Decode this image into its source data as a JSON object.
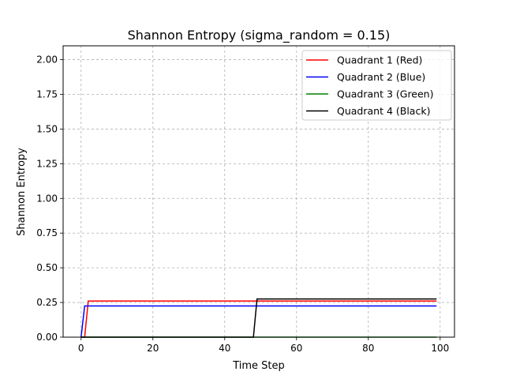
{
  "chart_data": {
    "type": "line",
    "title": "Shannon Entropy (sigma_random = 0.15)",
    "xlabel": "Time Step",
    "ylabel": "Shannon Entropy",
    "xlim": [
      -5,
      104
    ],
    "ylim": [
      0,
      2.1
    ],
    "xticks": [
      0,
      20,
      40,
      60,
      80,
      100
    ],
    "xtick_labels": [
      "0",
      "20",
      "40",
      "60",
      "80",
      "100"
    ],
    "yticks": [
      0,
      0.25,
      0.5,
      0.75,
      1.0,
      1.25,
      1.5,
      1.75,
      2.0
    ],
    "ytick_labels": [
      "0.00",
      "0.25",
      "0.50",
      "0.75",
      "1.00",
      "1.25",
      "1.50",
      "1.75",
      "2.00"
    ],
    "grid": true,
    "legend_position": "top-right",
    "series": [
      {
        "name": "Quadrant 1 (Red)",
        "color": "#ff0000",
        "x": [
          0,
          1,
          2,
          99
        ],
        "y": [
          0,
          0,
          0.26,
          0.26
        ]
      },
      {
        "name": "Quadrant 2 (Blue)",
        "color": "#0000ff",
        "x": [
          0,
          1,
          99
        ],
        "y": [
          0,
          0.225,
          0.225
        ]
      },
      {
        "name": "Quadrant 3 (Green)",
        "color": "#008000",
        "x": [
          0,
          99
        ],
        "y": [
          0,
          0
        ]
      },
      {
        "name": "Quadrant 4 (Black)",
        "color": "#000000",
        "x": [
          0,
          48,
          49,
          99
        ],
        "y": [
          0,
          0,
          0.275,
          0.275
        ]
      }
    ]
  }
}
